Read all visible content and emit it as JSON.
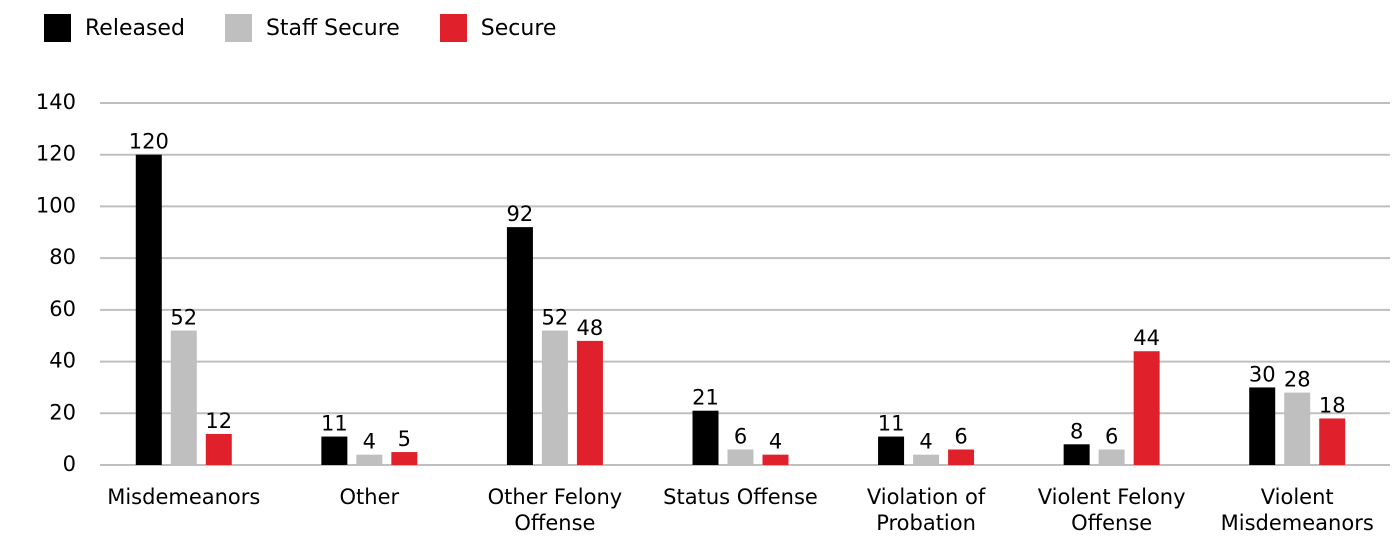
{
  "chart_data": {
    "type": "bar",
    "categories": [
      "Misdemeanors",
      "Other",
      "Other Felony Offense",
      "Status Offense",
      "Violation of Probation",
      "Violent Felony Offense",
      "Violent Misdemeanors"
    ],
    "series": [
      {
        "name": "Released",
        "color": "#000000",
        "values": [
          120,
          11,
          92,
          21,
          11,
          8,
          30
        ]
      },
      {
        "name": "Staff Secure",
        "color": "#bfbfbf",
        "values": [
          52,
          4,
          52,
          6,
          4,
          6,
          28
        ]
      },
      {
        "name": "Secure",
        "color": "#e0202a",
        "values": [
          12,
          5,
          48,
          4,
          6,
          44,
          18
        ]
      }
    ],
    "ylim": [
      0,
      140
    ],
    "yticks": [
      0,
      20,
      40,
      60,
      80,
      100,
      120,
      140
    ],
    "grid": true,
    "legend": "top-left"
  }
}
